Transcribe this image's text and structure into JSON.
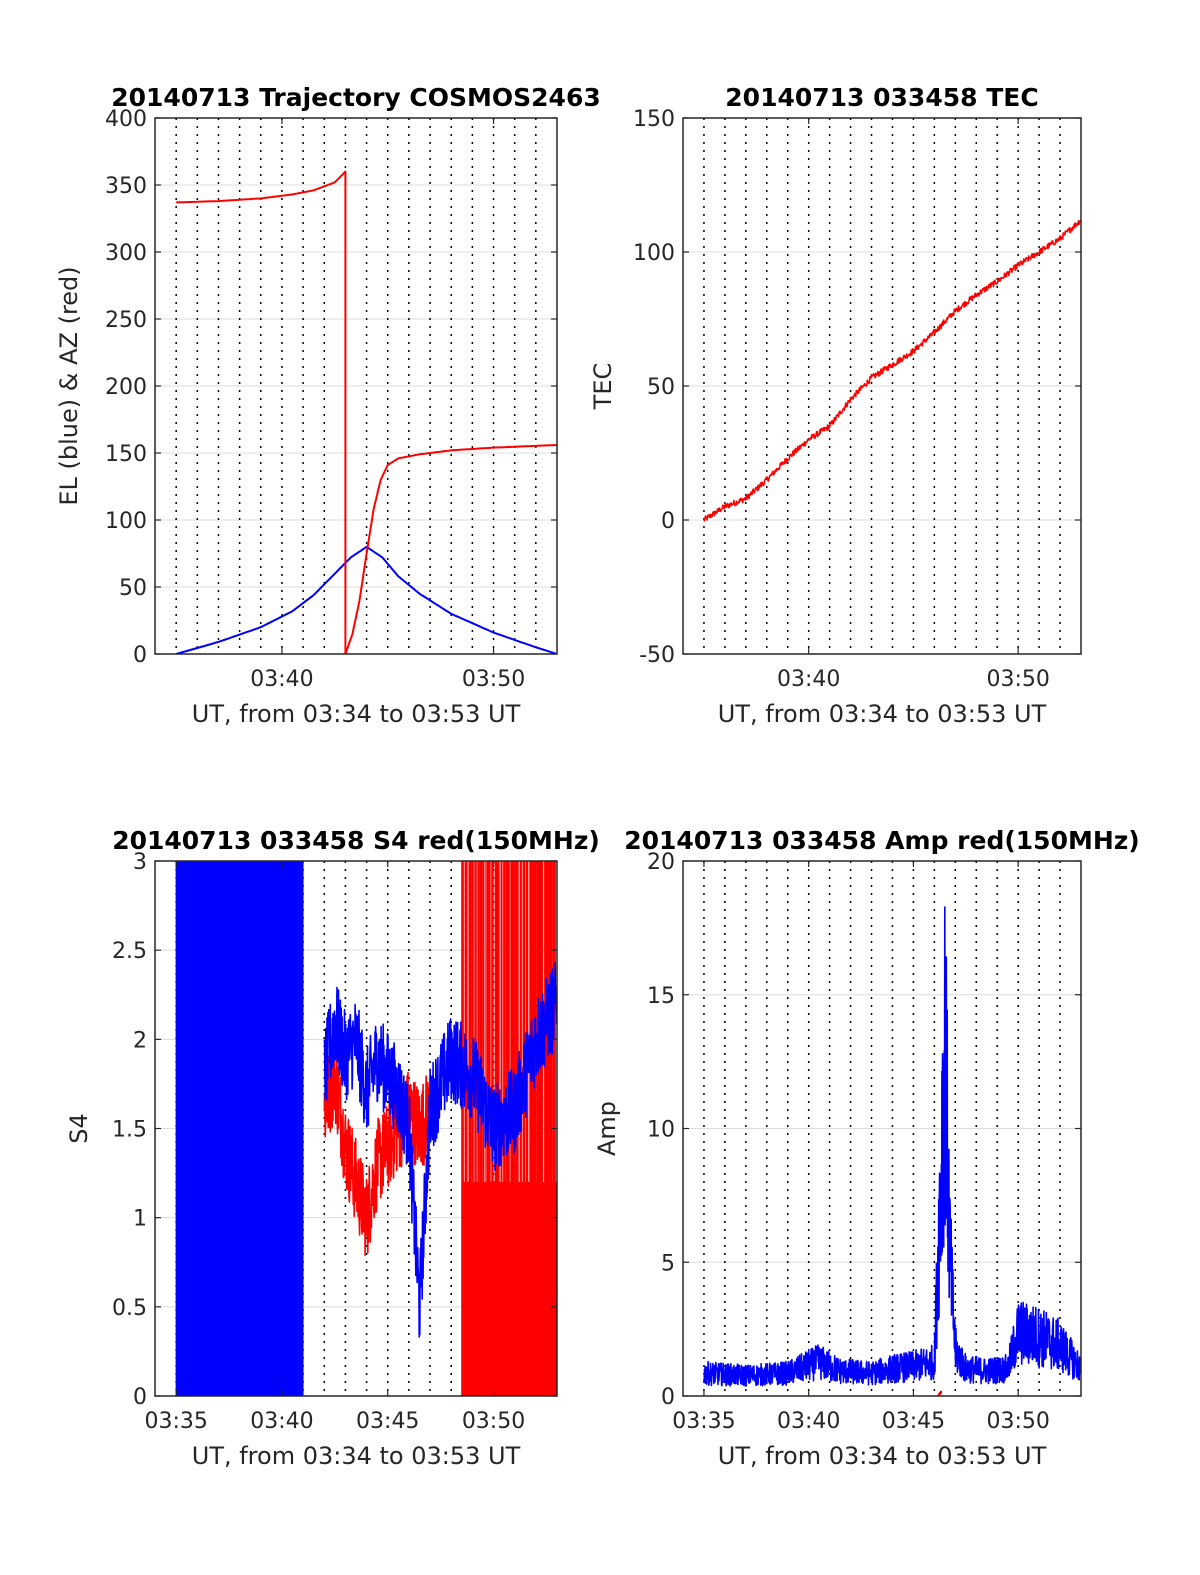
{
  "chart_data": [
    {
      "type": "line",
      "title": "20140713 Trajectory COSMOS2463",
      "xlabel": "UT, from 03:34 to 03:53 UT",
      "ylabel": "EL (blue) & AZ (red)",
      "xlim": [
        "03:34",
        "03:53"
      ],
      "ylim": [
        0,
        400
      ],
      "yticks": [
        0,
        50,
        100,
        150,
        200,
        250,
        300,
        350,
        400
      ],
      "xtick_labels": [
        "03:40",
        "03:50"
      ],
      "grid": true,
      "series": [
        {
          "color": "#0000ff",
          "x": [
            "03:35:00",
            "03:37:00",
            "03:39:00",
            "03:40:30",
            "03:41:30",
            "03:42:30",
            "03:43:15",
            "03:44:00",
            "03:44:45",
            "03:45:30",
            "03:46:30",
            "03:48:00",
            "03:50:00",
            "03:52:00",
            "03:53:00"
          ],
          "values": [
            0,
            9,
            20,
            32,
            44,
            60,
            72,
            80,
            72,
            58,
            45,
            30,
            16,
            5,
            0
          ]
        },
        {
          "color": "#ff0000",
          "x": [
            "03:35:00",
            "03:37:00",
            "03:39:00",
            "03:40:30",
            "03:41:30",
            "03:42:30",
            "03:43:00",
            "03:43:00",
            "03:43:20",
            "03:43:40",
            "03:44:00",
            "03:44:20",
            "03:44:40",
            "03:45:00",
            "03:45:30",
            "03:46:30",
            "03:48:00",
            "03:50:00",
            "03:53:00"
          ],
          "values": [
            337,
            338,
            340,
            343,
            346,
            352,
            360,
            0,
            15,
            40,
            75,
            108,
            130,
            141,
            146,
            149,
            152,
            154,
            156
          ]
        }
      ]
    },
    {
      "type": "line",
      "title": "20140713 033458 TEC",
      "xlabel": "UT, from 03:34 to 03:53 UT",
      "ylabel": "TEC",
      "xlim": [
        "03:34",
        "03:53"
      ],
      "ylim": [
        -50,
        150
      ],
      "yticks": [
        -50,
        0,
        50,
        100,
        150
      ],
      "xtick_labels": [
        "03:40",
        "03:50"
      ],
      "grid": true,
      "series": [
        {
          "color": "#ff0000",
          "x": [
            "03:35:00",
            "03:36:00",
            "03:37:00",
            "03:38:00",
            "03:39:00",
            "03:40:00",
            "03:41:00",
            "03:42:00",
            "03:43:00",
            "03:44:00",
            "03:45:00",
            "03:46:00",
            "03:47:00",
            "03:48:00",
            "03:49:00",
            "03:50:00",
            "03:51:00",
            "03:52:00",
            "03:53:00"
          ],
          "values": [
            0,
            5,
            8,
            15,
            23,
            30,
            35,
            45,
            53,
            58,
            63,
            70,
            78,
            84,
            89,
            95,
            100,
            105,
            112
          ]
        }
      ]
    },
    {
      "type": "line",
      "title": "20140713 033458 S4 red(150MHz)",
      "xlabel": "UT, from 03:34 to 03:53 UT",
      "ylabel": "S4",
      "xlim": [
        "03:34",
        "03:53"
      ],
      "ylim": [
        0,
        3
      ],
      "yticks": [
        0,
        0.5,
        1,
        1.5,
        2,
        2.5,
        3
      ],
      "xtick_labels": [
        "03:35",
        "03:40",
        "03:45",
        "03:50"
      ],
      "grid": true,
      "series": [
        {
          "color": "#ff0000",
          "x": [
            "03:42:00",
            "03:42:30",
            "03:43:00",
            "03:43:30",
            "03:44:00",
            "03:44:30",
            "03:45:00",
            "03:45:30",
            "03:46:00",
            "03:46:30",
            "03:47:00"
          ],
          "values": [
            1.6,
            1.8,
            1.4,
            1.2,
            1.0,
            1.3,
            1.4,
            1.5,
            1.6,
            1.5,
            1.6
          ]
        },
        {
          "color": "#0000ff",
          "x": [
            "03:42:00",
            "03:42:30",
            "03:43:00",
            "03:43:30",
            "03:44:00",
            "03:44:30",
            "03:45:00",
            "03:45:30",
            "03:46:00",
            "03:46:30",
            "03:47:00",
            "03:48:00",
            "03:49:00",
            "03:50:00",
            "03:51:00",
            "03:52:00",
            "03:53:00"
          ],
          "values": [
            1.8,
            2.1,
            1.9,
            2.0,
            1.7,
            1.9,
            1.8,
            1.7,
            1.5,
            0.5,
            1.6,
            1.9,
            1.8,
            1.5,
            1.6,
            2.0,
            2.2
          ]
        }
      ]
    },
    {
      "type": "line",
      "title": "20140713 033458 Amp red(150MHz)",
      "xlabel": "UT, from 03:34 to 03:53 UT",
      "ylabel": "Amp",
      "xlim": [
        "03:34",
        "03:53"
      ],
      "ylim": [
        0,
        20
      ],
      "yticks": [
        0,
        5,
        10,
        15,
        20
      ],
      "xtick_labels": [
        "03:35",
        "03:40",
        "03:45",
        "03:50"
      ],
      "grid": true,
      "series": [
        {
          "color": "#0000ff",
          "x": [
            "03:35:00",
            "03:37:00",
            "03:39:00",
            "03:40:30",
            "03:41:30",
            "03:43:00",
            "03:44:00",
            "03:45:00",
            "03:46:00",
            "03:46:15",
            "03:46:30",
            "03:46:45",
            "03:47:00",
            "03:47:30",
            "03:48:30",
            "03:49:30",
            "03:50:00",
            "03:51:00",
            "03:52:00",
            "03:53:00"
          ],
          "values": [
            1.0,
            0.9,
            1.0,
            1.5,
            1.1,
            1.0,
            1.2,
            1.3,
            1.5,
            8.0,
            15.5,
            6.0,
            2.0,
            1.2,
            1.1,
            1.2,
            2.8,
            2.6,
            2.2,
            1.2
          ]
        },
        {
          "color": "#ff0000",
          "x": [
            "03:46:10",
            "03:46:20"
          ],
          "values": [
            0,
            0.2
          ]
        }
      ]
    }
  ]
}
